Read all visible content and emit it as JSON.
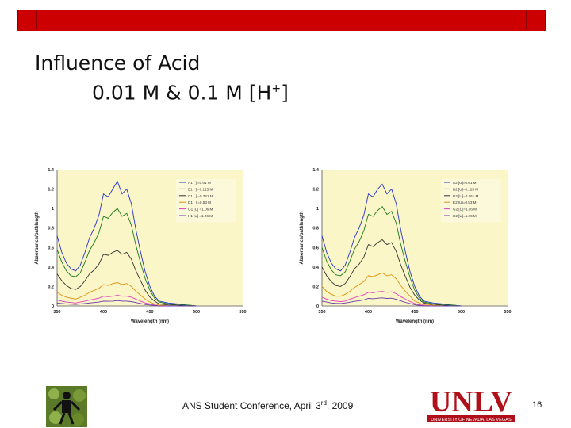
{
  "slide": {
    "title_line1": "Influence of Acid",
    "title_line2_main": "0.01 M & 0.1 M [H",
    "title_line2_sup": "+",
    "title_line2_end": "]"
  },
  "footer": {
    "text_main": "ANS Student Conference, April 3",
    "text_sup": "rd",
    "text_end": ", 2009",
    "page_number": "16",
    "logo_text": "UNLV",
    "logo_subtext": "UNIVERSITY OF NEVADA, LAS VEGAS"
  },
  "colors": {
    "accent": "#cc0000",
    "plot_bg": "#fbf6c8"
  },
  "chart_data": [
    {
      "type": "line",
      "xlabel": "Wavelength (nm)",
      "ylabel": "Absorbance/pathlength",
      "xlim": [
        350,
        550
      ],
      "ylim": [
        0,
        1.4
      ],
      "xticks": [
        350,
        400,
        450,
        500,
        550
      ],
      "yticks": [
        0,
        0.2,
        0.4,
        0.6,
        0.8,
        1,
        1.2,
        1.4
      ],
      "grid": false,
      "legend_position": "top-right",
      "x": [
        350,
        355,
        360,
        365,
        370,
        375,
        380,
        385,
        390,
        395,
        400,
        405,
        410,
        415,
        420,
        425,
        430,
        435,
        440,
        445,
        450,
        455,
        460,
        470,
        480,
        490,
        500
      ],
      "series": [
        {
          "name": "A1 [ ] =0.01 M",
          "color": "#2233cc",
          "values": [
            0.72,
            0.55,
            0.44,
            0.38,
            0.36,
            0.42,
            0.55,
            0.7,
            0.8,
            0.93,
            1.15,
            1.12,
            1.2,
            1.28,
            1.15,
            1.2,
            1.05,
            0.78,
            0.55,
            0.35,
            0.2,
            0.1,
            0.05,
            0.03,
            0.02,
            0.01,
            0.0
          ]
        },
        {
          "name": "B1 [ ] =0.125 M",
          "color": "#1a7a1a",
          "values": [
            0.58,
            0.45,
            0.36,
            0.31,
            0.3,
            0.34,
            0.45,
            0.57,
            0.65,
            0.75,
            0.92,
            0.9,
            0.96,
            1.0,
            0.92,
            0.95,
            0.83,
            0.62,
            0.44,
            0.28,
            0.16,
            0.08,
            0.04,
            0.02,
            0.01,
            0.01,
            0.0
          ]
        },
        {
          "name": "C1 [ ] =0.261 M",
          "color": "#333333",
          "values": [
            0.33,
            0.26,
            0.21,
            0.18,
            0.17,
            0.2,
            0.26,
            0.33,
            0.37,
            0.43,
            0.53,
            0.52,
            0.55,
            0.57,
            0.53,
            0.55,
            0.48,
            0.36,
            0.26,
            0.16,
            0.09,
            0.05,
            0.02,
            0.01,
            0.01,
            0.0,
            0.0
          ]
        },
        {
          "name": "D1 [ ] =0.53 M",
          "color": "#e09010",
          "values": [
            0.14,
            0.11,
            0.09,
            0.08,
            0.07,
            0.09,
            0.11,
            0.14,
            0.16,
            0.18,
            0.22,
            0.21,
            0.23,
            0.24,
            0.22,
            0.23,
            0.2,
            0.15,
            0.11,
            0.07,
            0.04,
            0.02,
            0.01,
            0.0,
            0.0,
            0.0,
            0.0
          ]
        },
        {
          "name": "G1 [U] =1.06 M",
          "color": "#e040c0",
          "values": [
            0.06,
            0.05,
            0.04,
            0.035,
            0.03,
            0.04,
            0.05,
            0.06,
            0.07,
            0.08,
            0.1,
            0.095,
            0.1,
            0.11,
            0.1,
            0.1,
            0.09,
            0.07,
            0.05,
            0.03,
            0.02,
            0.01,
            0.0,
            0.0,
            0.0,
            0.0,
            0.0
          ]
        },
        {
          "name": "H1 [U] =1.26 M",
          "color": "#6a3aa8",
          "values": [
            0.03,
            0.025,
            0.02,
            0.018,
            0.016,
            0.02,
            0.025,
            0.03,
            0.035,
            0.04,
            0.05,
            0.048,
            0.05,
            0.055,
            0.05,
            0.05,
            0.045,
            0.035,
            0.025,
            0.015,
            0.01,
            0.005,
            0.0,
            0.0,
            0.0,
            0.0,
            0.0
          ]
        }
      ]
    },
    {
      "type": "line",
      "xlabel": "Wavelength (nm)",
      "ylabel": "Absorbance/pathlength",
      "xlim": [
        350,
        550
      ],
      "ylim": [
        0,
        1.4
      ],
      "xticks": [
        350,
        400,
        450,
        500,
        550
      ],
      "yticks": [
        0,
        0.2,
        0.4,
        0.6,
        0.8,
        1,
        1.2,
        1.4
      ],
      "grid": false,
      "legend_position": "top-right",
      "x": [
        350,
        355,
        360,
        365,
        370,
        375,
        380,
        385,
        390,
        395,
        400,
        405,
        410,
        415,
        420,
        425,
        430,
        435,
        440,
        445,
        450,
        455,
        460,
        470,
        480,
        490,
        500
      ],
      "series": [
        {
          "name": "A2 [U]=0.01 M",
          "color": "#2233cc",
          "values": [
            0.72,
            0.55,
            0.44,
            0.38,
            0.36,
            0.42,
            0.55,
            0.7,
            0.8,
            0.93,
            1.15,
            1.12,
            1.2,
            1.25,
            1.15,
            1.2,
            1.05,
            0.78,
            0.55,
            0.35,
            0.2,
            0.1,
            0.05,
            0.03,
            0.02,
            0.01,
            0.0
          ]
        },
        {
          "name": "B2 [U]=0.125 M",
          "color": "#1a7a1a",
          "values": [
            0.6,
            0.46,
            0.37,
            0.32,
            0.31,
            0.35,
            0.46,
            0.58,
            0.66,
            0.77,
            0.94,
            0.92,
            0.98,
            1.02,
            0.94,
            0.97,
            0.85,
            0.63,
            0.45,
            0.29,
            0.16,
            0.08,
            0.04,
            0.02,
            0.01,
            0.01,
            0.0
          ]
        },
        {
          "name": "D2 [U]=0.261 M",
          "color": "#333333",
          "values": [
            0.4,
            0.31,
            0.25,
            0.21,
            0.2,
            0.23,
            0.3,
            0.38,
            0.43,
            0.5,
            0.63,
            0.61,
            0.65,
            0.68,
            0.63,
            0.65,
            0.56,
            0.42,
            0.3,
            0.19,
            0.11,
            0.06,
            0.03,
            0.01,
            0.01,
            0.0,
            0.0
          ]
        },
        {
          "name": "E2 [U]=0.53 M",
          "color": "#e09010",
          "values": [
            0.2,
            0.15,
            0.12,
            0.1,
            0.1,
            0.12,
            0.15,
            0.19,
            0.22,
            0.25,
            0.31,
            0.3,
            0.32,
            0.34,
            0.31,
            0.32,
            0.28,
            0.21,
            0.15,
            0.1,
            0.05,
            0.03,
            0.01,
            0.01,
            0.0,
            0.0,
            0.0
          ]
        },
        {
          "name": "G2 [U]=1.06 M",
          "color": "#e040c0",
          "values": [
            0.09,
            0.07,
            0.055,
            0.05,
            0.045,
            0.05,
            0.07,
            0.085,
            0.1,
            0.115,
            0.14,
            0.135,
            0.145,
            0.15,
            0.14,
            0.145,
            0.125,
            0.095,
            0.07,
            0.045,
            0.025,
            0.012,
            0.005,
            0.0,
            0.0,
            0.0,
            0.0
          ]
        },
        {
          "name": "H2 [U]=1.26 M",
          "color": "#6a3aa8",
          "values": [
            0.05,
            0.04,
            0.03,
            0.027,
            0.025,
            0.03,
            0.038,
            0.047,
            0.054,
            0.062,
            0.077,
            0.074,
            0.08,
            0.083,
            0.077,
            0.08,
            0.069,
            0.052,
            0.037,
            0.024,
            0.013,
            0.006,
            0.002,
            0.0,
            0.0,
            0.0,
            0.0
          ]
        }
      ]
    }
  ]
}
